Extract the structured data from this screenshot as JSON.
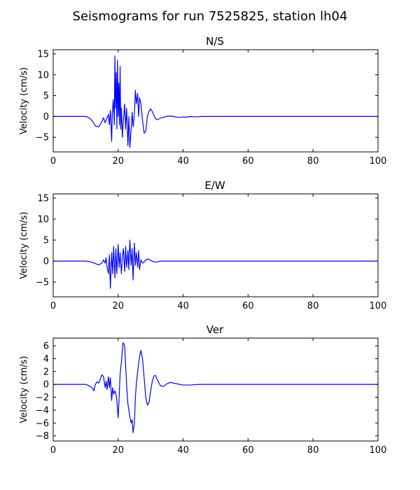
{
  "figure": {
    "suptitle": "Seismograms for run 7525825, station lh04"
  },
  "chart_data": [
    {
      "type": "line",
      "title": "N/S",
      "xlabel": "",
      "ylabel": "Velocity (cm/s)",
      "xlim": [
        0,
        100
      ],
      "ylim": [
        -8.5,
        16
      ],
      "xticks": [
        0,
        20,
        40,
        60,
        80,
        100
      ],
      "yticks": [
        -5,
        0,
        5,
        10,
        15
      ],
      "line_color": "#0000ff",
      "grid": false,
      "series": [
        {
          "x": [
            0,
            10,
            11,
            12,
            13,
            14,
            15,
            15.5,
            16,
            16.5,
            17,
            17.3,
            17.6,
            18,
            18.2,
            18.5,
            18.8,
            19,
            19.2,
            19.4,
            19.6,
            19.8,
            20,
            20.2,
            20.4,
            20.6,
            20.8,
            21,
            21.3,
            21.6,
            22,
            22.3,
            22.6,
            23,
            23.3,
            23.6,
            24,
            24.3,
            24.6,
            25,
            25.3,
            25.6,
            26,
            26.3,
            26.6,
            27,
            27.5,
            28,
            28.5,
            29,
            29.5,
            30,
            30.5,
            31,
            31.5,
            32,
            33,
            34,
            35,
            36,
            37,
            38,
            39,
            40,
            41,
            42,
            44,
            46,
            50,
            60,
            100
          ],
          "y": [
            0,
            0,
            -0.3,
            -1,
            -2.3,
            -2.5,
            -1.3,
            -0.3,
            -1.5,
            -0.5,
            0.5,
            -2,
            1.5,
            -6,
            1,
            4,
            -2,
            14.5,
            2,
            10.5,
            -3,
            13.5,
            0,
            8,
            -2,
            12,
            -3,
            2,
            -5,
            -1,
            3,
            -3,
            2,
            -7,
            0,
            -7.5,
            -3,
            1,
            -2.5,
            0.5,
            6.3,
            3,
            5.5,
            0,
            4.5,
            3,
            -1,
            -4,
            -3.5,
            0,
            1.2,
            1.8,
            1.2,
            0.3,
            -0.5,
            -0.8,
            -0.4,
            -0.2,
            0,
            0.1,
            0,
            -0.15,
            -0.25,
            -0.1,
            -0.15,
            -0.05,
            -0.1,
            0,
            0,
            0,
            0
          ]
        }
      ]
    },
    {
      "type": "line",
      "title": "E/W",
      "xlabel": "",
      "ylabel": "Velocity (cm/s)",
      "xlim": [
        0,
        100
      ],
      "ylim": [
        -8.5,
        16
      ],
      "xticks": [
        0,
        20,
        40,
        60,
        80,
        100
      ],
      "yticks": [
        -5,
        0,
        5,
        10,
        15
      ],
      "line_color": "#0000ff",
      "grid": false,
      "series": [
        {
          "x": [
            0,
            10,
            11,
            12,
            13,
            14,
            15,
            15.5,
            16,
            16.3,
            16.6,
            17,
            17.3,
            17.6,
            18,
            18.3,
            18.6,
            19,
            19.3,
            19.6,
            20,
            20.3,
            20.6,
            21,
            21.3,
            21.6,
            22,
            22.3,
            22.6,
            23,
            23.3,
            23.6,
            24,
            24.3,
            24.6,
            25,
            25.3,
            25.6,
            26,
            26.3,
            26.6,
            27,
            27.5,
            28,
            28.5,
            29,
            29.5,
            30,
            31,
            32,
            33,
            35,
            40,
            50,
            100
          ],
          "y": [
            0,
            0,
            -0.1,
            -0.3,
            -0.6,
            -0.9,
            -0.5,
            0.3,
            -0.5,
            0.8,
            -1.5,
            -3,
            1.5,
            -6.5,
            2,
            -3,
            3.5,
            -4,
            3,
            -3,
            4,
            -1.5,
            2,
            -3,
            1,
            3,
            -2.5,
            3.5,
            -1.5,
            2.5,
            -2,
            5,
            -1,
            3,
            -4.5,
            4.3,
            -1,
            2,
            -1.5,
            2.5,
            -2,
            0.3,
            -0.5,
            -0.2,
            0.2,
            0.5,
            0.4,
            0.2,
            -0.2,
            -0.2,
            0,
            0,
            0,
            0,
            0
          ]
        }
      ]
    },
    {
      "type": "line",
      "title": "Ver",
      "xlabel": "",
      "ylabel": "Velocity (cm/s)",
      "xlim": [
        0,
        100
      ],
      "ylim": [
        -8.8,
        7.2
      ],
      "xticks": [
        0,
        20,
        40,
        60,
        80,
        100
      ],
      "yticks": [
        -8,
        -6,
        -4,
        -2,
        0,
        2,
        4,
        6
      ],
      "line_color": "#0000ff",
      "grid": false,
      "series": [
        {
          "x": [
            0,
            10,
            11,
            12,
            12.5,
            13,
            13.5,
            14,
            14.5,
            15,
            15.5,
            16,
            16.3,
            16.6,
            17,
            17.3,
            17.6,
            18,
            18.3,
            18.6,
            19,
            19.3,
            19.6,
            20,
            20.3,
            20.6,
            21,
            21.5,
            22,
            22.3,
            22.6,
            23,
            23.3,
            23.6,
            24,
            24.3,
            24.6,
            25,
            25.3,
            25.6,
            26,
            26.5,
            27,
            27.5,
            28,
            28.5,
            29,
            29.5,
            30,
            30.5,
            31,
            31.5,
            32,
            33,
            34,
            35,
            36,
            37,
            38,
            39,
            40,
            42,
            45,
            50,
            100
          ],
          "y": [
            0,
            0,
            -0.2,
            -0.5,
            -1,
            0,
            0.4,
            0.2,
            0.8,
            1.5,
            1.2,
            -0.5,
            0.5,
            -0.8,
            1.2,
            -0.5,
            1,
            -2.5,
            -0.5,
            -1.5,
            -1,
            -1.5,
            -2.5,
            -5.2,
            -2,
            1.5,
            3.5,
            6.5,
            6,
            3,
            0,
            -3,
            -4,
            -5,
            -6,
            -5.5,
            -7.5,
            -6,
            -2,
            0,
            2,
            4,
            5.3,
            4,
            1,
            -2,
            -3.2,
            -2.8,
            -1,
            0.5,
            1.3,
            1.4,
            0.8,
            -0.2,
            -0.3,
            0.1,
            0.3,
            0.2,
            0.1,
            0,
            -0.1,
            -0.1,
            0,
            0,
            0
          ]
        }
      ]
    }
  ]
}
